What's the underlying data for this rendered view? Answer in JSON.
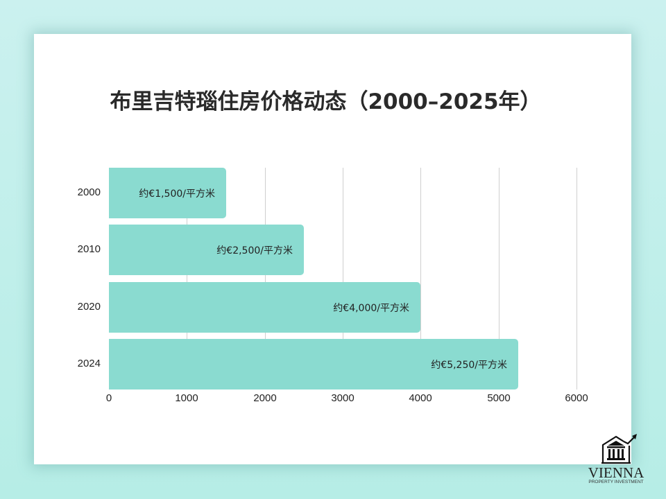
{
  "title": "布里吉特瑙住房价格动态（2000–2025年）",
  "colors": {
    "background": "#c8f0ee",
    "card": "#ffffff",
    "bar": "#8adbd0",
    "grid": "#cfcfcf",
    "text": "#222222"
  },
  "chart_data": {
    "type": "bar",
    "orientation": "horizontal",
    "title": "布里吉特瑙住房价格动态（2000–2025年）",
    "categories": [
      "2000",
      "2010",
      "2020",
      "2024"
    ],
    "values": [
      1500,
      2500,
      4000,
      5250
    ],
    "data_labels": [
      "约€1,500/平方米",
      "约€2,500/平方米",
      "约€4,000/平方米",
      "约€5,250/平方米"
    ],
    "xlabel": "",
    "ylabel": "",
    "xlim": [
      0,
      6000
    ],
    "xticks": [
      "0",
      "1000",
      "2000",
      "3000",
      "4000",
      "5000",
      "6000"
    ],
    "grid": true,
    "legend": null
  },
  "logo": {
    "name": "VIENNA",
    "tagline": "PROPERTY INVESTMENT",
    "icon": "bank-building-rising-arrow-icon"
  }
}
